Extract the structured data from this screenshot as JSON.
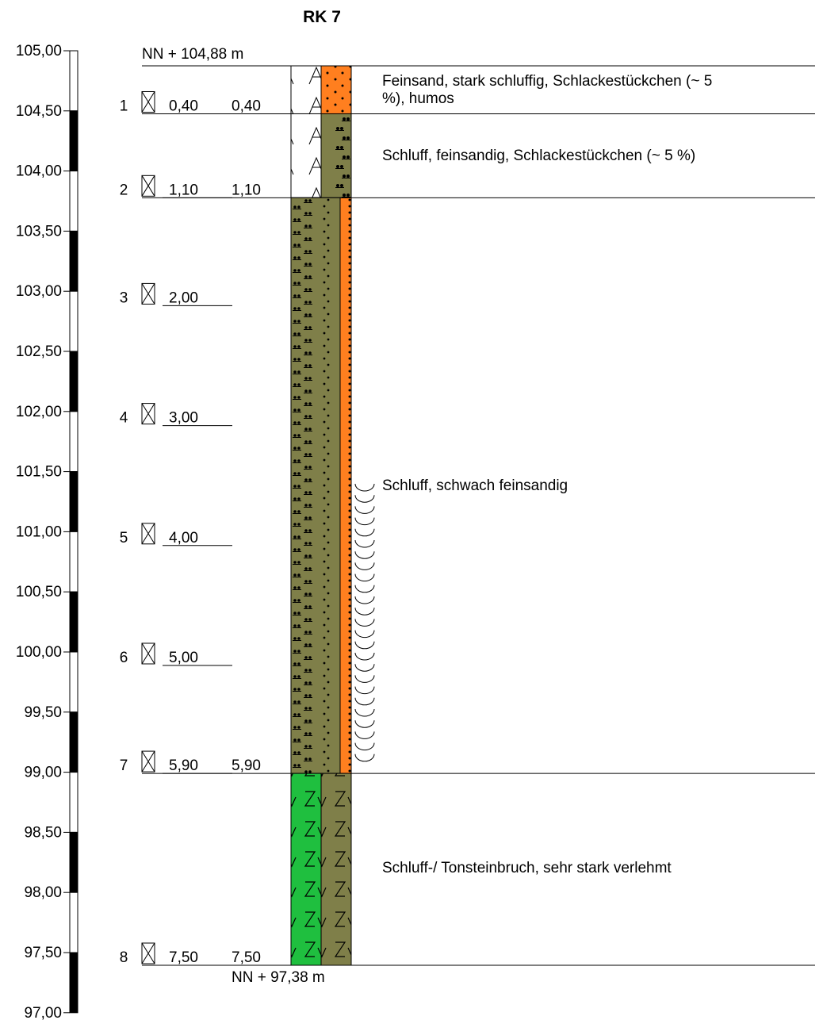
{
  "title": "RK 7",
  "top_elevation_label": "NN + 104,88 m",
  "bottom_elevation_label": "NN + 97,38 m",
  "colors": {
    "orange": "#ff7f1f",
    "olive": "#7f7f49",
    "green": "#1fbf3f",
    "white": "#ffffff",
    "ink": "#000000"
  },
  "scale": {
    "top": 105.0,
    "bottom": 97.0,
    "tick_labels": [
      "105,00",
      "104,50",
      "104,00",
      "103,50",
      "103,00",
      "102,50",
      "102,00",
      "101,50",
      "101,00",
      "100,50",
      "100,00",
      "99,50",
      "99,00",
      "98,50",
      "98,00",
      "97,50",
      "97,00"
    ]
  },
  "samples": [
    {
      "no": "1",
      "depth": "0,40",
      "layer_bottom": "0,40",
      "depth_value": 0.4
    },
    {
      "no": "2",
      "depth": "1,10",
      "layer_bottom": "1,10",
      "depth_value": 1.1
    },
    {
      "no": "3",
      "depth": "2,00",
      "layer_bottom": "",
      "depth_value": 2.0
    },
    {
      "no": "4",
      "depth": "3,00",
      "layer_bottom": "",
      "depth_value": 3.0
    },
    {
      "no": "5",
      "depth": "4,00",
      "layer_bottom": "",
      "depth_value": 4.0
    },
    {
      "no": "6",
      "depth": "5,00",
      "layer_bottom": "",
      "depth_value": 5.0
    },
    {
      "no": "7",
      "depth": "5,90",
      "layer_bottom": "5,90",
      "depth_value": 5.9
    },
    {
      "no": "8",
      "depth": "7,50",
      "layer_bottom": "7,50",
      "depth_value": 7.5
    }
  ],
  "layers": [
    {
      "top": 0.0,
      "bottom": 0.4,
      "description_lines": [
        "Feinsand, stark schluffig, Schlackestückchen (~ 5",
        "%), humos"
      ],
      "left_pattern": "fill",
      "left_color": "white",
      "right_pattern": "fine-sand",
      "right_color": "orange"
    },
    {
      "top": 0.4,
      "bottom": 1.1,
      "description_lines": [
        "Schluff, feinsandig, Schlackestückchen (~ 5 %)"
      ],
      "left_pattern": "fill",
      "left_color": "white",
      "right_pattern": "silt",
      "right_color": "olive"
    },
    {
      "top": 1.1,
      "bottom": 5.9,
      "description_lines": [
        "Schluff, schwach feinsandig"
      ],
      "left_pattern": "silt-sand",
      "left_color": "olive",
      "right_pattern": "fine-sand",
      "right_color": "orange",
      "consistency": "soft"
    },
    {
      "top": 5.9,
      "bottom": 7.5,
      "description_lines": [
        "Schluff-/ Tonsteinbruch, sehr stark verlehmt"
      ],
      "left_pattern": "weathered-rock",
      "left_color": "green",
      "right_pattern": "weathered-rock",
      "right_color": "olive"
    }
  ]
}
